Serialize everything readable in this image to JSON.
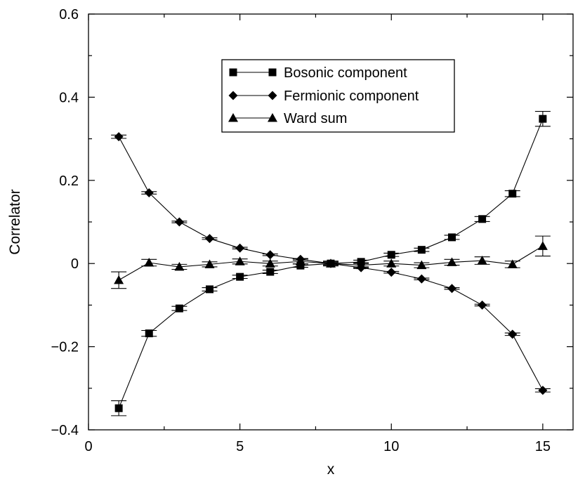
{
  "chart_data": {
    "type": "line",
    "xlabel": "x",
    "ylabel": "Correlator",
    "xlim": [
      0,
      16
    ],
    "ylim": [
      -0.4,
      0.6
    ],
    "xticks": [
      0,
      5,
      10,
      15
    ],
    "xtick_labels": [
      "0",
      "5",
      "10",
      "15"
    ],
    "yticks": [
      -0.4,
      -0.2,
      0,
      0.2,
      0.4,
      0.6
    ],
    "ytick_labels": [
      "−0.4",
      "−0.2",
      "0",
      "0.2",
      "0.4",
      "0.6"
    ],
    "legend_position": "top-center",
    "grid": false,
    "series": [
      {
        "name": "Bosonic component",
        "marker": "square",
        "x": [
          1,
          2,
          3,
          4,
          5,
          6,
          7,
          8,
          9,
          10,
          11,
          12,
          13,
          14,
          15
        ],
        "y": [
          -0.348,
          -0.168,
          -0.108,
          -0.062,
          -0.032,
          -0.02,
          -0.005,
          0.0,
          0.004,
          0.021,
          0.033,
          0.063,
          0.107,
          0.168,
          0.348
        ],
        "err": [
          0.018,
          0.007,
          0.005,
          0.004,
          0.004,
          0.004,
          0.004,
          0.004,
          0.004,
          0.004,
          0.004,
          0.005,
          0.006,
          0.007,
          0.018
        ]
      },
      {
        "name": "Fermionic component",
        "marker": "diamond",
        "x": [
          1,
          2,
          3,
          4,
          5,
          6,
          7,
          8,
          9,
          10,
          11,
          12,
          13,
          14,
          15
        ],
        "y": [
          0.305,
          0.17,
          0.1,
          0.06,
          0.037,
          0.021,
          0.01,
          0.0,
          -0.01,
          -0.021,
          -0.037,
          -0.06,
          -0.1,
          -0.17,
          -0.305
        ],
        "err": [
          0.004,
          0.003,
          0.002,
          0.002,
          0.002,
          0.002,
          0.002,
          0.002,
          0.002,
          0.002,
          0.002,
          0.002,
          0.002,
          0.003,
          0.004
        ]
      },
      {
        "name": "Ward sum",
        "marker": "triangle",
        "x": [
          1,
          2,
          3,
          4,
          5,
          6,
          7,
          8,
          9,
          10,
          11,
          12,
          13,
          14,
          15
        ],
        "y": [
          -0.04,
          0.002,
          -0.008,
          -0.002,
          0.005,
          0.0,
          0.005,
          0.0,
          -0.004,
          0.0,
          -0.004,
          0.003,
          0.007,
          -0.002,
          0.042
        ],
        "err": [
          0.02,
          0.008,
          0.006,
          0.006,
          0.006,
          0.006,
          0.006,
          0.006,
          0.006,
          0.006,
          0.006,
          0.007,
          0.009,
          0.008,
          0.024
        ]
      }
    ]
  }
}
